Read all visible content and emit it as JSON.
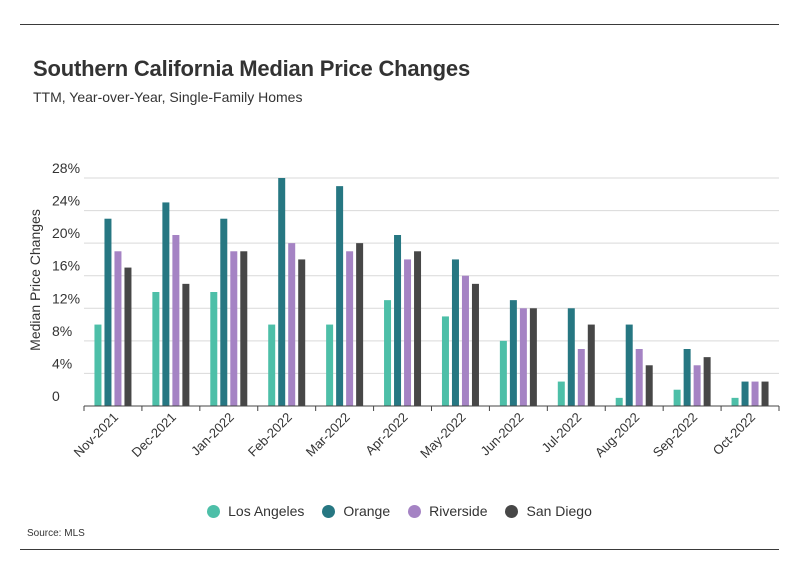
{
  "header": {
    "title": "Southern California Median Price Changes",
    "subtitle": "TTM, Year-over-Year, Single-Family Homes"
  },
  "footer": {
    "source": "Source: MLS"
  },
  "chart_data": {
    "type": "bar",
    "title": "Southern California Median Price Changes",
    "subtitle": "TTM, Year-over-Year, Single-Family Homes",
    "xlabel": "",
    "ylabel": "Median Price Changes",
    "ylim": [
      0,
      28
    ],
    "yticks": [
      "0",
      "4%",
      "8%",
      "12%",
      "16%",
      "20%",
      "24%",
      "28%"
    ],
    "ytick_values": [
      0,
      4,
      8,
      12,
      16,
      20,
      24,
      28
    ],
    "grid": true,
    "legend_position": "bottom",
    "categories": [
      "Nov-2021",
      "Dec-2021",
      "Jan-2022",
      "Feb-2022",
      "Mar-2022",
      "Apr-2022",
      "May-2022",
      "Jun-2022",
      "Jul-2022",
      "Aug-2022",
      "Sep-2022",
      "Oct-2022"
    ],
    "series": [
      {
        "name": "Los Angeles",
        "color": "#4dbfa8",
        "values": [
          10,
          14,
          14,
          10,
          10,
          13,
          11,
          8,
          3,
          1,
          2,
          1
        ]
      },
      {
        "name": "Orange",
        "color": "#267782",
        "values": [
          23,
          25,
          23,
          28,
          27,
          21,
          18,
          13,
          12,
          10,
          7,
          3
        ]
      },
      {
        "name": "Riverside",
        "color": "#a583c4",
        "values": [
          19,
          21,
          19,
          20,
          19,
          18,
          16,
          12,
          7,
          7,
          5,
          3
        ]
      },
      {
        "name": "San Diego",
        "color": "#474747",
        "values": [
          17,
          15,
          19,
          18,
          20,
          19,
          15,
          12,
          10,
          5,
          6,
          3
        ]
      }
    ]
  }
}
